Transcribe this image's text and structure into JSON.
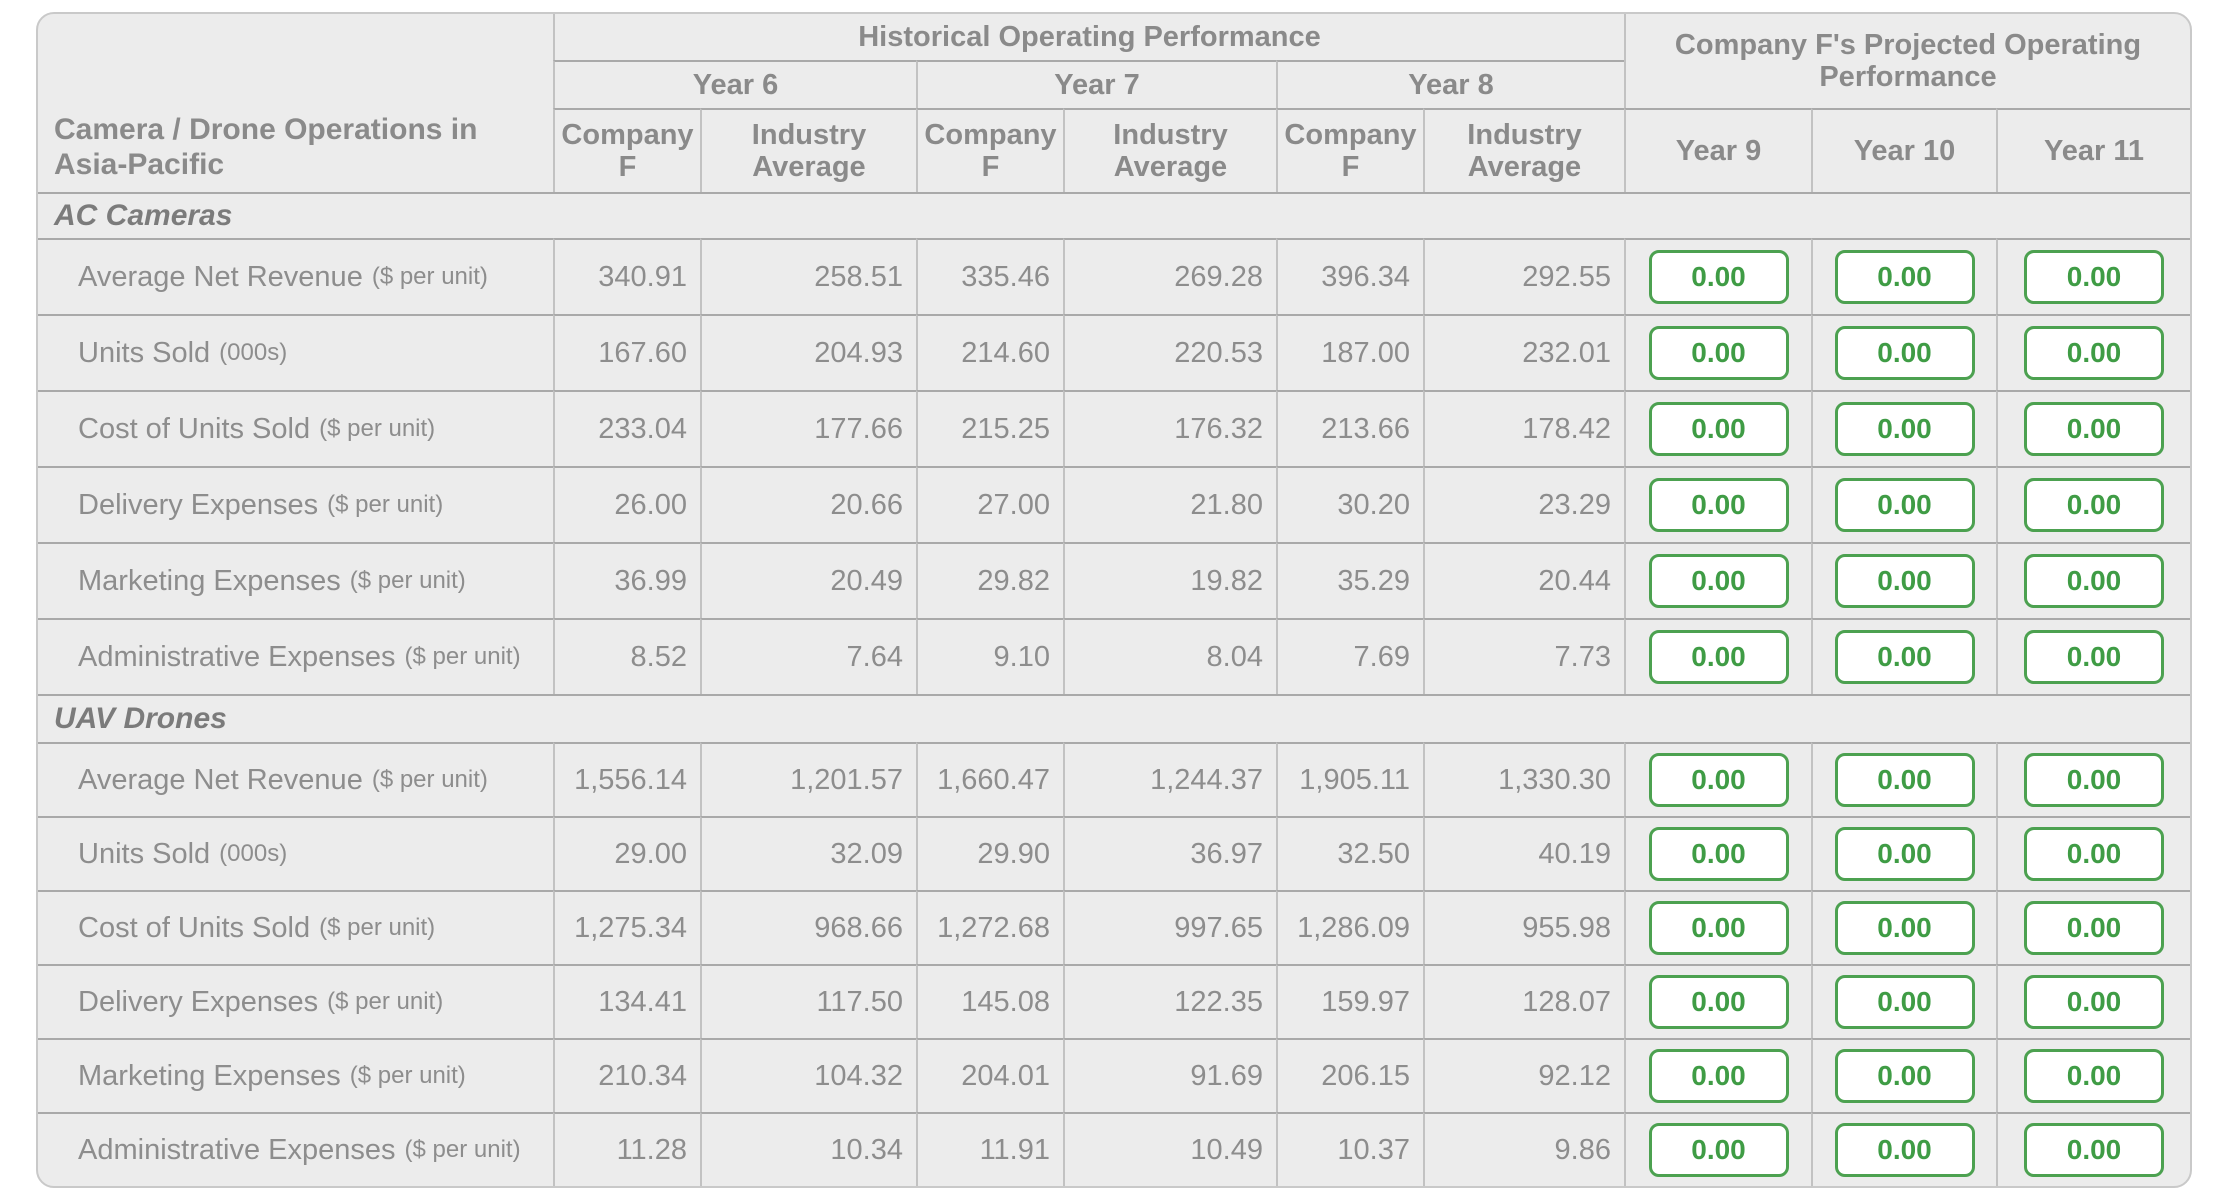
{
  "table": {
    "corner_header": "Camera / Drone Operations in Asia-Pacific",
    "historical_title": "Historical Operating Performance",
    "projected_title": "Company F's Projected Operating Performance",
    "historical_years": [
      "Year 6",
      "Year 7",
      "Year 8"
    ],
    "subcolumns": [
      "Company F",
      "Industry Average"
    ],
    "projected_years": [
      "Year 9",
      "Year 10",
      "Year 11"
    ],
    "sections": [
      {
        "name": "AC Cameras",
        "rows": [
          {
            "label": "Average Net Revenue",
            "unit": "($ per unit)",
            "values": [
              "340.91",
              "258.51",
              "335.46",
              "269.28",
              "396.34",
              "292.55"
            ],
            "projected": [
              "0.00",
              "0.00",
              "0.00"
            ]
          },
          {
            "label": "Units Sold",
            "unit": "(000s)",
            "values": [
              "167.60",
              "204.93",
              "214.60",
              "220.53",
              "187.00",
              "232.01"
            ],
            "projected": [
              "0.00",
              "0.00",
              "0.00"
            ]
          },
          {
            "label": "Cost of Units Sold",
            "unit": "($ per unit)",
            "values": [
              "233.04",
              "177.66",
              "215.25",
              "176.32",
              "213.66",
              "178.42"
            ],
            "projected": [
              "0.00",
              "0.00",
              "0.00"
            ]
          },
          {
            "label": "Delivery Expenses",
            "unit": "($ per unit)",
            "values": [
              "26.00",
              "20.66",
              "27.00",
              "21.80",
              "30.20",
              "23.29"
            ],
            "projected": [
              "0.00",
              "0.00",
              "0.00"
            ]
          },
          {
            "label": "Marketing Expenses",
            "unit": "($ per unit)",
            "values": [
              "36.99",
              "20.49",
              "29.82",
              "19.82",
              "35.29",
              "20.44"
            ],
            "projected": [
              "0.00",
              "0.00",
              "0.00"
            ]
          },
          {
            "label": "Administrative Expenses",
            "unit": "($ per unit)",
            "values": [
              "8.52",
              "7.64",
              "9.10",
              "8.04",
              "7.69",
              "7.73"
            ],
            "projected": [
              "0.00",
              "0.00",
              "0.00"
            ]
          }
        ]
      },
      {
        "name": "UAV Drones",
        "rows": [
          {
            "label": "Average Net Revenue",
            "unit": "($ per unit)",
            "values": [
              "1,556.14",
              "1,201.57",
              "1,660.47",
              "1,244.37",
              "1,905.11",
              "1,330.30"
            ],
            "projected": [
              "0.00",
              "0.00",
              "0.00"
            ]
          },
          {
            "label": "Units Sold",
            "unit": "(000s)",
            "values": [
              "29.00",
              "32.09",
              "29.90",
              "36.97",
              "32.50",
              "40.19"
            ],
            "projected": [
              "0.00",
              "0.00",
              "0.00"
            ]
          },
          {
            "label": "Cost of Units Sold",
            "unit": "($ per unit)",
            "values": [
              "1,275.34",
              "968.66",
              "1,272.68",
              "997.65",
              "1,286.09",
              "955.98"
            ],
            "projected": [
              "0.00",
              "0.00",
              "0.00"
            ]
          },
          {
            "label": "Delivery Expenses",
            "unit": "($ per unit)",
            "values": [
              "134.41",
              "117.50",
              "145.08",
              "122.35",
              "159.97",
              "128.07"
            ],
            "projected": [
              "0.00",
              "0.00",
              "0.00"
            ]
          },
          {
            "label": "Marketing Expenses",
            "unit": "($ per unit)",
            "values": [
              "210.34",
              "104.32",
              "204.01",
              "91.69",
              "206.15",
              "92.12"
            ],
            "projected": [
              "0.00",
              "0.00",
              "0.00"
            ]
          },
          {
            "label": "Administrative Expenses",
            "unit": "($ per unit)",
            "values": [
              "11.28",
              "10.34",
              "11.91",
              "10.49",
              "10.37",
              "9.86"
            ],
            "projected": [
              "0.00",
              "0.00",
              "0.00"
            ]
          }
        ]
      }
    ]
  },
  "colors": {
    "accent_green": "#44A047",
    "table_background": "#ECECEC",
    "text_gray": "#8D8D8D"
  }
}
